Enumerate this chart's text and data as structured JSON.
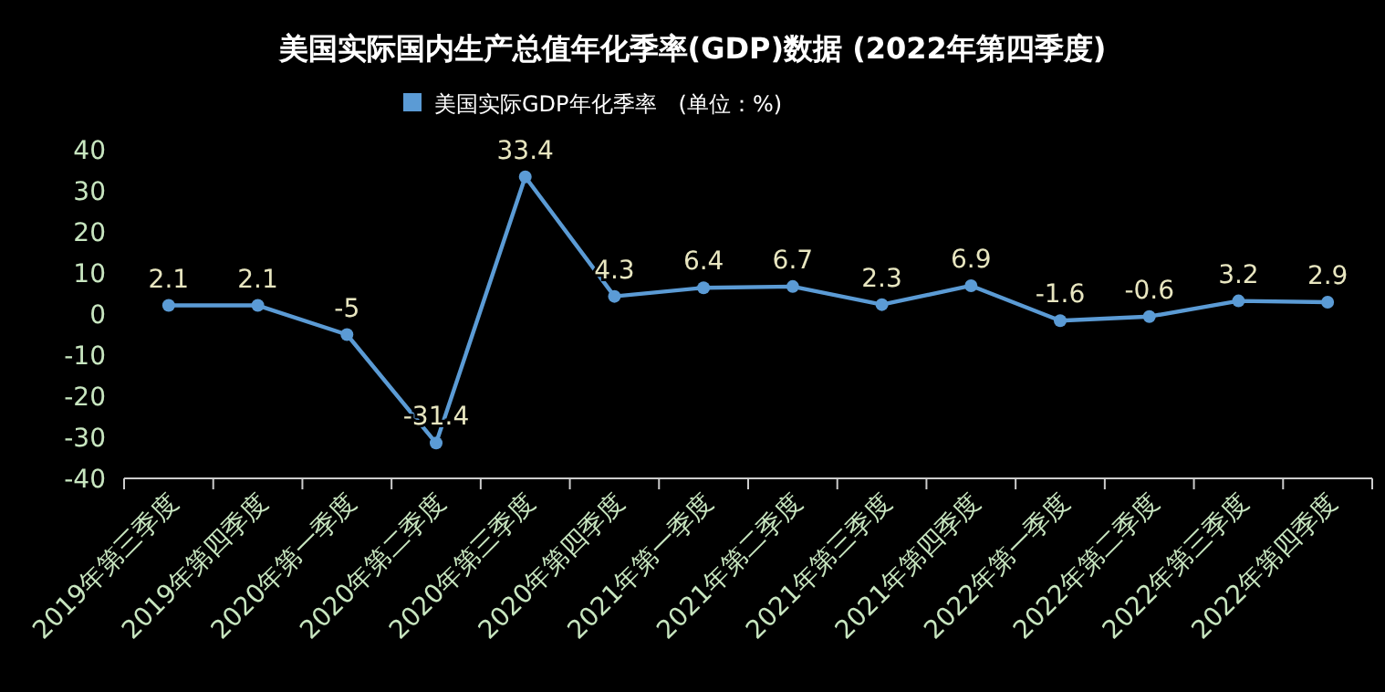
{
  "chart_data": {
    "type": "line",
    "title": "美国实际国内生产总值年化季率(GDP)数据 (2022年第四季度)",
    "categories": [
      "2019年第三季度",
      "2019年第四季度",
      "2020年第一季度",
      "2020年第二季度",
      "2020年第三季度",
      "2020年第四季度",
      "2021年第一季度",
      "2021年第二季度",
      "2021年第三季度",
      "2021年第四季度",
      "2022年第一季度",
      "2022年第二季度",
      "2022年第三季度",
      "2022年第四季度"
    ],
    "series": [
      {
        "name": "美国实际GDP年化季率　(单位：%)",
        "color": "#5b9bd5",
        "values": [
          2.1,
          2.1,
          -5,
          -31.4,
          33.4,
          4.3,
          6.4,
          6.7,
          2.3,
          6.9,
          -1.6,
          -0.6,
          3.2,
          2.9
        ]
      }
    ],
    "ylim": [
      -40,
      40
    ],
    "yticks": [
      -40,
      -30,
      -20,
      -10,
      0,
      10,
      20,
      30,
      40
    ],
    "data_labels": true,
    "legend": "top",
    "marker": "circle",
    "grid": false
  }
}
